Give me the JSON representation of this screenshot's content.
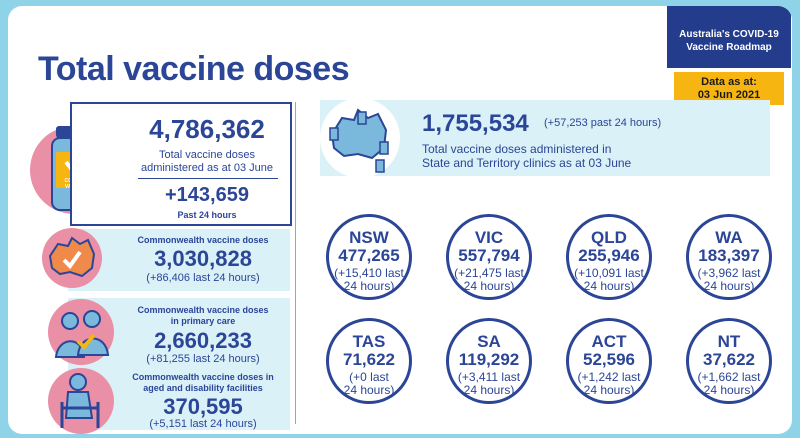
{
  "header": {
    "title": "Total vaccine doses",
    "roadmap_line1": "Australia's COVID-19",
    "roadmap_line2": "Vaccine Roadmap",
    "data_as_at_label": "Data as at:",
    "data_as_at_date": "03 Jun 2021"
  },
  "total": {
    "value": "4,786,362",
    "label_line1": "Total vaccine doses",
    "label_line2": "administered as at 03 June",
    "change": "+143,659",
    "change_label": "Past 24 hours",
    "vial_label_line1": "COVID-19",
    "vial_label_line2": "VACCINE"
  },
  "commonwealth": {
    "label": "Commonwealth vaccine doses",
    "value": "3,030,828",
    "change": "(+86,406 last 24 hours)"
  },
  "primary_care": {
    "label_line1": "Commonwealth vaccine doses",
    "label_line2": "in primary care",
    "value": "2,660,233",
    "change": "(+81,255 last 24 hours)"
  },
  "aged_care": {
    "label_line1": "Commonwealth vaccine doses in",
    "label_line2": "aged and disability facilities",
    "value": "370,595",
    "change": "(+5,151 last 24 hours)"
  },
  "state_clinics": {
    "value": "1,755,534",
    "change": "(+57,253 past 24 hours)",
    "label_line1": "Total vaccine doses administered in",
    "label_line2": "State and Territory clinics as at 03 June"
  },
  "states": [
    {
      "name": "NSW",
      "value": "477,265",
      "change1": "(+15,410 last",
      "change2": "24 hours)"
    },
    {
      "name": "VIC",
      "value": "557,794",
      "change1": "(+21,475 last",
      "change2": "24 hours)"
    },
    {
      "name": "QLD",
      "value": "255,946",
      "change1": "(+10,091 last",
      "change2": "24 hours)"
    },
    {
      "name": "WA",
      "value": "183,397",
      "change1": "(+3,962 last",
      "change2": "24 hours)"
    },
    {
      "name": "TAS",
      "value": "71,622",
      "change1": "(+0 last",
      "change2": "24 hours)"
    },
    {
      "name": "SA",
      "value": "119,292",
      "change1": "(+3,411 last",
      "change2": "24 hours)"
    },
    {
      "name": "ACT",
      "value": "52,596",
      "change1": "(+1,242 last",
      "change2": "24 hours)"
    },
    {
      "name": "NT",
      "value": "37,622",
      "change1": "(+1,662 last",
      "change2": "24 hours)"
    }
  ],
  "colors": {
    "navy": "#2b4597",
    "light_panel": "#daf1f8",
    "pink": "#e98fa6",
    "orange": "#f7b512",
    "teal": "#8fd3e8"
  }
}
